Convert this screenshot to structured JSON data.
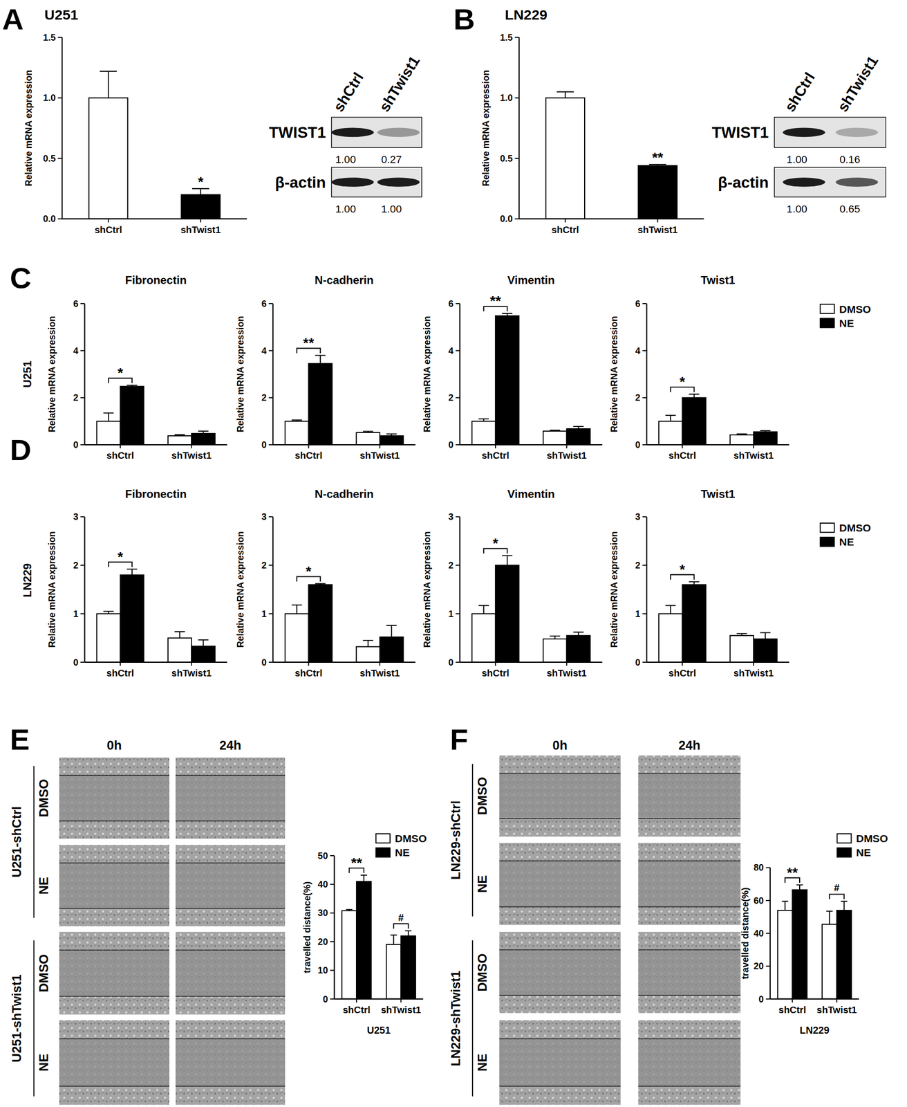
{
  "chart_data": [
    {
      "type": "bar",
      "title": "U251",
      "y_label": "Relative mRNA expression",
      "categories": [
        "shCtrl",
        "shTwist1"
      ],
      "values": [
        1.0,
        0.2
      ],
      "errors": [
        0.22,
        0.05
      ],
      "colors": [
        "#ffffff",
        "#000000"
      ],
      "ylim": [
        0,
        1.5
      ],
      "yticks": [
        {
          "value": 0,
          "label": "0.0"
        },
        {
          "value": 0.5,
          "label": "0.5"
        },
        {
          "value": 1,
          "label": "1.0"
        },
        {
          "value": 1.5,
          "label": "1.5"
        }
      ],
      "annotations": [
        {
          "text": "*",
          "category": 1
        }
      ]
    },
    {
      "type": "bar",
      "title": "LN229",
      "y_label": "Relative mRNA expression",
      "categories": [
        "shCtrl",
        "shTwist1"
      ],
      "values": [
        1.0,
        0.44
      ],
      "errors": [
        0.05,
        0.01
      ],
      "colors": [
        "#ffffff",
        "#000000"
      ],
      "ylim": [
        0,
        1.5
      ],
      "yticks": [
        {
          "value": 0,
          "label": "0.0"
        },
        {
          "value": 0.5,
          "label": "0.5"
        },
        {
          "value": 1,
          "label": "1.0"
        },
        {
          "value": 1.5,
          "label": "1.5"
        }
      ],
      "annotations": [
        {
          "text": "**",
          "category": 1
        }
      ]
    },
    {
      "type": "bar",
      "title": "Fibronectin",
      "y_label": "Relative mRNA expression",
      "categories": [
        "shCtrl",
        "shTwist1"
      ],
      "series": [
        {
          "color": "#ffffff",
          "values": [
            1.0,
            0.38
          ],
          "errors": [
            0.35,
            0.05
          ]
        },
        {
          "color": "#000000",
          "values": [
            2.48,
            0.48
          ],
          "errors": [
            0.05,
            0.1
          ]
        }
      ],
      "ylim": [
        0,
        6
      ],
      "yticks": [
        0,
        2,
        4,
        6
      ],
      "annotations": [
        {
          "text": "*",
          "category": 0
        }
      ]
    },
    {
      "type": "bar",
      "title": "N-cadherin",
      "y_label": "Relative mRNA expression",
      "categories": [
        "shCtrl",
        "shTwist1"
      ],
      "series": [
        {
          "color": "#ffffff",
          "values": [
            1.0,
            0.52
          ],
          "errors": [
            0.05,
            0.05
          ]
        },
        {
          "color": "#000000",
          "values": [
            3.45,
            0.38
          ],
          "errors": [
            0.35,
            0.08
          ]
        }
      ],
      "ylim": [
        0,
        6
      ],
      "yticks": [
        0,
        2,
        4,
        6
      ],
      "annotations": [
        {
          "text": "**",
          "category": 0
        }
      ]
    },
    {
      "type": "bar",
      "title": "Vimentin",
      "y_label": "Relative mRNA expression",
      "categories": [
        "shCtrl",
        "shTwist1"
      ],
      "series": [
        {
          "color": "#ffffff",
          "values": [
            1.0,
            0.58
          ],
          "errors": [
            0.1,
            0.04
          ]
        },
        {
          "color": "#000000",
          "values": [
            5.48,
            0.68
          ],
          "errors": [
            0.1,
            0.1
          ]
        }
      ],
      "ylim": [
        0,
        6
      ],
      "yticks": [
        0,
        2,
        4,
        6
      ],
      "annotations": [
        {
          "text": "**",
          "category": 0
        }
      ]
    },
    {
      "type": "bar",
      "title": "Twist1",
      "y_label": "Relative mRNA expression",
      "categories": [
        "shCtrl",
        "shTwist1"
      ],
      "series": [
        {
          "name": "DMSO",
          "color": "#ffffff",
          "values": [
            1.0,
            0.42
          ],
          "errors": [
            0.25,
            0.04
          ]
        },
        {
          "name": "NE",
          "color": "#000000",
          "values": [
            2.0,
            0.55
          ],
          "errors": [
            0.15,
            0.05
          ]
        }
      ],
      "legend": "right",
      "ylim": [
        0,
        6
      ],
      "yticks": [
        0,
        2,
        4,
        6
      ],
      "annotations": [
        {
          "text": "*",
          "category": 0
        }
      ]
    },
    {
      "type": "bar",
      "title": "Fibronectin",
      "y_label": "Relative mRNA expression",
      "categories": [
        "shCtrl",
        "shTwist1"
      ],
      "series": [
        {
          "color": "#ffffff",
          "values": [
            1.0,
            0.5
          ],
          "errors": [
            0.05,
            0.13
          ]
        },
        {
          "color": "#000000",
          "values": [
            1.8,
            0.33
          ],
          "errors": [
            0.12,
            0.13
          ]
        }
      ],
      "ylim": [
        0,
        3
      ],
      "yticks": [
        0,
        1,
        2,
        3
      ],
      "annotations": [
        {
          "text": "*",
          "category": 0
        }
      ]
    },
    {
      "type": "bar",
      "title": "N-cadherin",
      "y_label": "Relative mRNA expression",
      "categories": [
        "shCtrl",
        "shTwist1"
      ],
      "series": [
        {
          "color": "#ffffff",
          "values": [
            1.0,
            0.32
          ],
          "errors": [
            0.18,
            0.13
          ]
        },
        {
          "color": "#000000",
          "values": [
            1.6,
            0.52
          ],
          "errors": [
            0.02,
            0.24
          ]
        }
      ],
      "ylim": [
        0,
        3
      ],
      "yticks": [
        0,
        1,
        2,
        3
      ],
      "annotations": [
        {
          "text": "*",
          "category": 0
        }
      ]
    },
    {
      "type": "bar",
      "title": "Vimentin",
      "y_label": "Relative mRNA expression",
      "categories": [
        "shCtrl",
        "shTwist1"
      ],
      "series": [
        {
          "color": "#ffffff",
          "values": [
            1.0,
            0.48
          ],
          "errors": [
            0.17,
            0.06
          ]
        },
        {
          "color": "#000000",
          "values": [
            2.0,
            0.55
          ],
          "errors": [
            0.2,
            0.07
          ]
        }
      ],
      "ylim": [
        0,
        3
      ],
      "yticks": [
        0,
        1,
        2,
        3
      ],
      "annotations": [
        {
          "text": "*",
          "category": 0
        }
      ]
    },
    {
      "type": "bar",
      "title": "Twist1",
      "y_label": "Relative mRNA expression",
      "categories": [
        "shCtrl",
        "shTwist1"
      ],
      "series": [
        {
          "name": "DMSO",
          "color": "#ffffff",
          "values": [
            1.0,
            0.55
          ],
          "errors": [
            0.17,
            0.04
          ]
        },
        {
          "name": "NE",
          "color": "#000000",
          "values": [
            1.6,
            0.48
          ],
          "errors": [
            0.06,
            0.13
          ]
        }
      ],
      "legend": "right",
      "ylim": [
        0,
        3
      ],
      "yticks": [
        0,
        1,
        2,
        3
      ],
      "annotations": [
        {
          "text": "*",
          "category": 0
        }
      ]
    },
    {
      "type": "bar",
      "x_label": "U251",
      "y_label": "travelled distance(%)",
      "categories": [
        "shCtrl",
        "shTwist1"
      ],
      "series": [
        {
          "name": "DMSO",
          "color": "#ffffff",
          "values": [
            30.8,
            19
          ],
          "errors": [
            0.4,
            3.3
          ]
        },
        {
          "name": "NE",
          "color": "#000000",
          "values": [
            41,
            22
          ],
          "errors": [
            2.2,
            1.8
          ]
        }
      ],
      "legend": "top-right",
      "ylim": [
        0,
        50
      ],
      "yticks": [
        0,
        10,
        20,
        30,
        40,
        50
      ],
      "annotations": [
        {
          "text": "**",
          "category": 0
        },
        {
          "text": "#",
          "category": 1
        }
      ]
    },
    {
      "type": "bar",
      "x_label": "LN229",
      "y_label": "travelled distance(%)",
      "categories": [
        "shCtrl",
        "shTwist1"
      ],
      "series": [
        {
          "name": "DMSO",
          "color": "#ffffff",
          "values": [
            54,
            45.5
          ],
          "errors": [
            5.5,
            8
          ]
        },
        {
          "name": "NE",
          "color": "#000000",
          "values": [
            66.5,
            54
          ],
          "errors": [
            3,
            5.5
          ]
        }
      ],
      "legend": "top-right",
      "ylim": [
        0,
        80
      ],
      "yticks": [
        0,
        20,
        40,
        60,
        80
      ],
      "annotations": [
        {
          "text": "**",
          "category": 0
        },
        {
          "text": "#",
          "category": 1
        }
      ]
    }
  ],
  "figure": {
    "panel_labels": [
      "A",
      "B",
      "C",
      "D",
      "E",
      "F"
    ],
    "row_labels": [
      "U251",
      "LN229"
    ],
    "blots": [
      {
        "lanes": [
          "shCtrl",
          "shTwist1"
        ],
        "rows": [
          {
            "name": "TWIST1",
            "values": [
              1,
              0.27
            ],
            "value_labels": [
              "1.00",
              "0.27"
            ]
          },
          {
            "name": "β-actin",
            "values": [
              1,
              1
            ],
            "value_labels": [
              "1.00",
              "1.00"
            ]
          }
        ]
      },
      {
        "lanes": [
          "shCtrl",
          "shTwist1"
        ],
        "rows": [
          {
            "name": "TWIST1",
            "values": [
              1,
              0.16
            ],
            "value_labels": [
              "1.00",
              "0.16"
            ]
          },
          {
            "name": "β-actin",
            "values": [
              1,
              0.65
            ],
            "value_labels": [
              "1.00",
              "0.65"
            ]
          }
        ]
      }
    ],
    "scratch": [
      {
        "times": [
          "0h",
          "24h"
        ],
        "groups": [
          {
            "name": "U251-shCtrl",
            "rows": [
              "DMSO",
              "NE"
            ]
          },
          {
            "name": "U251-shTwist1",
            "rows": [
              "DMSO",
              "NE"
            ]
          }
        ]
      },
      {
        "times": [
          "0h",
          "24h"
        ],
        "groups": [
          {
            "name": "LN229-shCtrl",
            "rows": [
              "DMSO",
              "NE"
            ]
          },
          {
            "name": "LN229-shTwist1",
            "rows": [
              "DMSO",
              "NE"
            ]
          }
        ]
      }
    ]
  }
}
